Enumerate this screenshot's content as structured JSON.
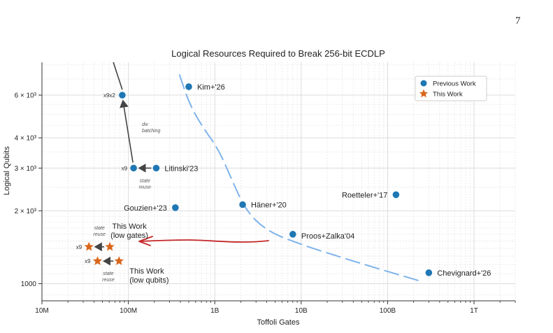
{
  "page_number": "7",
  "chart_data": {
    "type": "scatter",
    "title": "Logical Resources Required to Break 256-bit ECDLP",
    "xlabel": "Toffoli Gates",
    "ylabel": "Logical Qubits",
    "xscale": "log",
    "yscale": "log",
    "xlim": [
      10000000.0,
      3000000000000.0
    ],
    "ylim": [
      850,
      8200
    ],
    "x_ticks": [
      {
        "value": 10000000.0,
        "label": "10M"
      },
      {
        "value": 100000000.0,
        "label": "100M"
      },
      {
        "value": 1000000000.0,
        "label": "1B"
      },
      {
        "value": 10000000000.0,
        "label": "10B"
      },
      {
        "value": 100000000000.0,
        "label": "100B"
      },
      {
        "value": 1000000000000.0,
        "label": "1T"
      }
    ],
    "y_ticks": [
      {
        "value": 1000,
        "label": "1000"
      },
      {
        "value": 2000,
        "label": "2 × 10³"
      },
      {
        "value": 3000,
        "label": "3 × 10³"
      },
      {
        "value": 4000,
        "label": "4 × 10³"
      },
      {
        "value": 6000,
        "label": "6 × 10³"
      }
    ],
    "legend": {
      "position": "top-right",
      "entries": [
        "Previous Work",
        "This Work"
      ]
    },
    "colors": {
      "previous": "#1f77b4",
      "this": "#d9661b",
      "curve": "#7eb3ec",
      "arrow": "#444444",
      "red": "#c62828"
    },
    "series": [
      {
        "name": "Previous Work",
        "marker": "circle",
        "points": [
          {
            "x": 500000000.0,
            "y": 6500,
            "label": "Kim+'26"
          },
          {
            "x": 210000000.0,
            "y": 3000,
            "label": "Litinski'23"
          },
          {
            "x": 115000000.0,
            "y": 3000,
            "label": ""
          },
          {
            "x": 85000000.0,
            "y": 6000,
            "label": ""
          },
          {
            "x": 350000000.0,
            "y": 2060,
            "label": "Gouzien+'23"
          },
          {
            "x": 2100000000.0,
            "y": 2120,
            "label": "Häner+'20"
          },
          {
            "x": 8000000000.0,
            "y": 1600,
            "label": "Proos+Zalka'04"
          },
          {
            "x": 125000000000.0,
            "y": 2330,
            "label": "Roetteler+'17"
          },
          {
            "x": 300000000000.0,
            "y": 1110,
            "label": "Chevignard+'26"
          }
        ]
      },
      {
        "name": "This Work",
        "marker": "star",
        "points": [
          {
            "x": 61000000.0,
            "y": 1420
          },
          {
            "x": 35000000.0,
            "y": 1420
          },
          {
            "x": 78000000.0,
            "y": 1240
          },
          {
            "x": 44000000.0,
            "y": 1240
          }
        ]
      }
    ],
    "annotations": [
      {
        "text": "This Work",
        "text2": "(low gates)"
      },
      {
        "text": "This Work",
        "text2": "(low qubits)"
      },
      {
        "text": "x9x2"
      },
      {
        "text": "x9"
      },
      {
        "text": "x9"
      },
      {
        "text": "x9"
      },
      {
        "text": "div",
        "text2": "batching"
      },
      {
        "text": "state",
        "text2": "reuse"
      },
      {
        "text": "state",
        "text2": "reuse"
      },
      {
        "text": "state",
        "text2": "reuse"
      }
    ],
    "curve": [
      {
        "x": 390000000.0,
        "y": 7300
      },
      {
        "x": 500000000.0,
        "y": 5600
      },
      {
        "x": 700000000.0,
        "y": 4500
      },
      {
        "x": 1100000000.0,
        "y": 3600
      },
      {
        "x": 1600000000.0,
        "y": 2650
      },
      {
        "x": 2300000000.0,
        "y": 2000
      },
      {
        "x": 4000000000.0,
        "y": 1650
      },
      {
        "x": 10000000000.0,
        "y": 1450
      },
      {
        "x": 30000000000.0,
        "y": 1280
      },
      {
        "x": 80000000000.0,
        "y": 1150
      },
      {
        "x": 160000000000.0,
        "y": 1070
      },
      {
        "x": 250000000000.0,
        "y": 1020
      }
    ]
  }
}
